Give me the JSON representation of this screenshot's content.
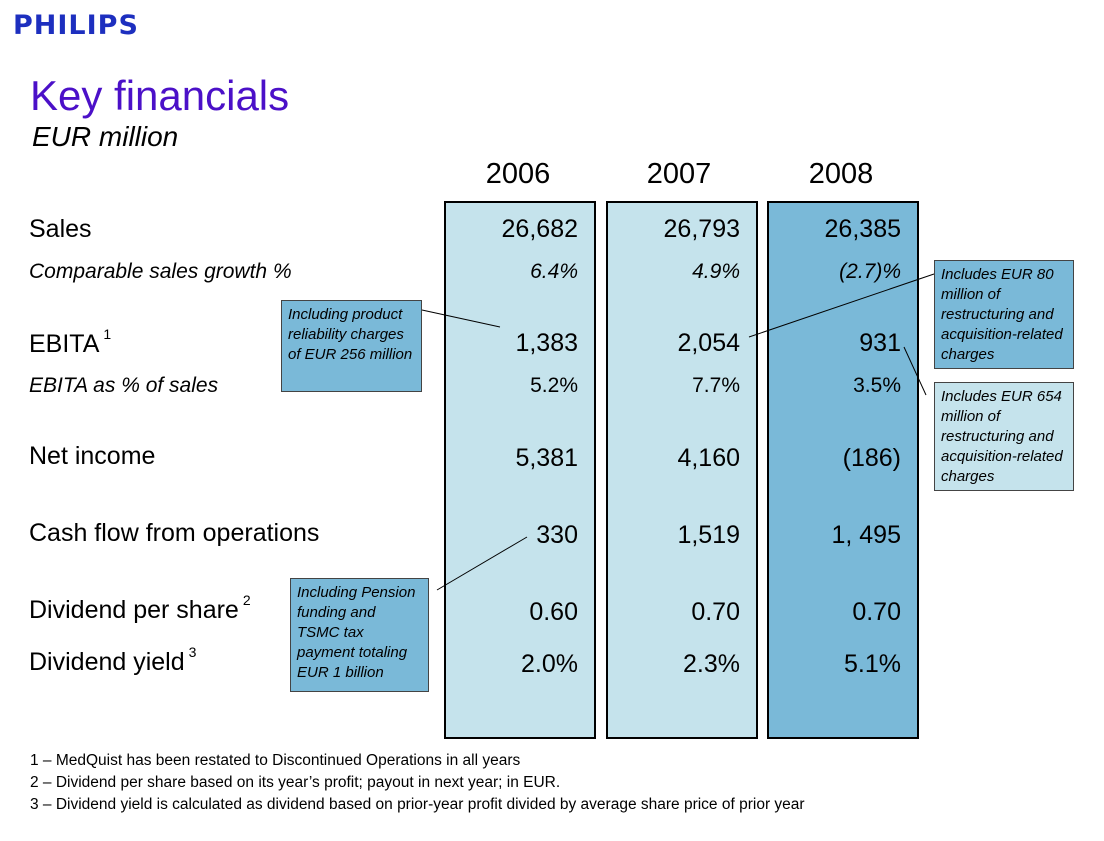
{
  "brand": "PHILIPS",
  "title": "Key financials",
  "subtitle": "EUR million",
  "years": [
    "2006",
    "2007",
    "2008"
  ],
  "colors": {
    "light_col": "#c5e3ec",
    "dark_col": "#7ab9d8",
    "title": "#4b10c8",
    "logo": "#1d2fbf"
  },
  "rows": {
    "sales": {
      "label": "Sales",
      "values": [
        "26,682",
        "26,793",
        "26,385"
      ]
    },
    "comp_growth": {
      "label": "Comparable sales growth %",
      "values": [
        "6.4%",
        "4.9%",
        "(2.7)%"
      ]
    },
    "ebita": {
      "label": "EBITA",
      "sup": "1",
      "values": [
        "1,383",
        "2,054",
        "931"
      ]
    },
    "ebita_pct": {
      "label": "EBITA as % of sales",
      "values": [
        "5.2%",
        "7.7%",
        "3.5%"
      ]
    },
    "net_income": {
      "label": "Net income",
      "values": [
        "5,381",
        "4,160",
        "(186)"
      ]
    },
    "cash_flow": {
      "label": "Cash flow from operations",
      "values": [
        "330",
        "1,519",
        "1, 495"
      ]
    },
    "dividend": {
      "label": "Dividend per share",
      "sup": "2",
      "values": [
        "0.60",
        "0.70",
        "0.70"
      ]
    },
    "yield": {
      "label": "Dividend yield",
      "sup": "3",
      "values": [
        "2.0%",
        "2.3%",
        "5.1%"
      ]
    }
  },
  "notes": {
    "ebita_2006": "Including product reliability charges of EUR 256 million",
    "cash_2006": "Including Pension funding and TSMC tax payment totaling EUR 1 billion",
    "ebita_2007": "Includes EUR 80 million of restructuring and acquisition-related charges",
    "ebita_2008": "Includes EUR 654 million of restructuring and acquisition-related charges"
  },
  "footnotes": [
    "1 – MedQuist has been restated to Discontinued Operations in all years",
    "2 – Dividend per share based on its year’s profit; payout in next year; in EUR.",
    "3 – Dividend yield is calculated as dividend based on prior-year profit divided by average share price of prior year"
  ]
}
